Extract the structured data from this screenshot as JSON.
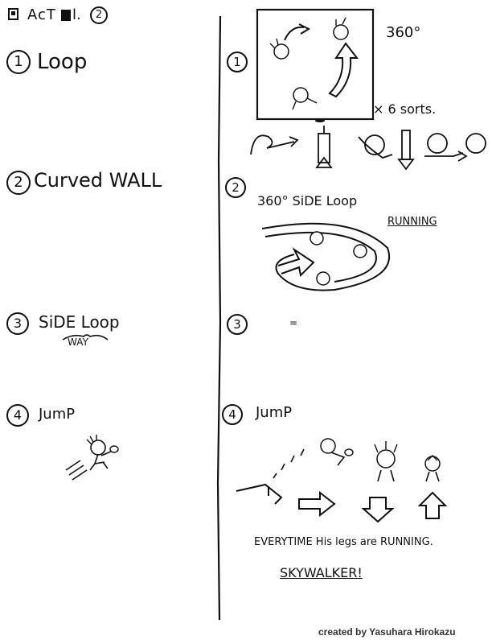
{
  "header": {
    "icon": "notebook-icon",
    "title": "AcT",
    "title_rest": "l.",
    "act_num": "2"
  },
  "left": {
    "items": [
      {
        "num": "1",
        "label": "Loop"
      },
      {
        "num": "2",
        "label": "Curved WALL"
      },
      {
        "num": "3",
        "label": "SiDE Loop",
        "sub": "WAY"
      },
      {
        "num": "4",
        "label": "JumP"
      }
    ]
  },
  "right": {
    "s1": {
      "num": "1",
      "deg": "360°",
      "sorts": "× 6 sorts."
    },
    "s2": {
      "num": "2",
      "title": "360°  SiDE Loop",
      "running": "RUNNING"
    },
    "s3": {
      "num": "3",
      "mark": "="
    },
    "s4": {
      "num": "4",
      "title": "JumP",
      "caption": "EVERYTIME  His legs are RUNNING.",
      "sky": "SKYWALKER!"
    }
  },
  "credit": "created by Yasuhara Hirokazu"
}
